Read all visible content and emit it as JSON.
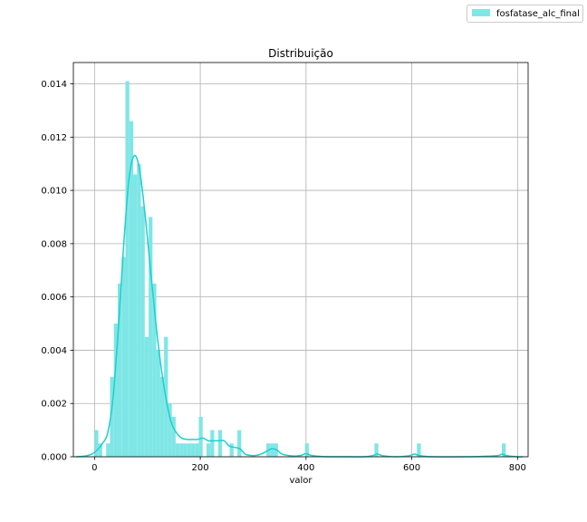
{
  "chart_data": {
    "type": "bar",
    "title": "Distribuição",
    "xlabel": "valor",
    "ylabel": "",
    "xlim": [
      -40,
      820
    ],
    "ylim": [
      0,
      0.0148
    ],
    "x_ticks": [
      "0",
      "200",
      "400",
      "600",
      "800"
    ],
    "y_ticks": [
      "0.000",
      "0.002",
      "0.004",
      "0.006",
      "0.008",
      "0.010",
      "0.012",
      "0.014"
    ],
    "grid": true,
    "legend_position": "top-right",
    "bin_width": 7.3,
    "histogram_color": "#7fe6e6",
    "kde_color": "#1ecfcf",
    "series": [
      {
        "name": "fosfatase_alc_final",
        "kind": "histogram",
        "bins": [
          {
            "x": 0,
            "y": 0.001
          },
          {
            "x": 7.3,
            "y": 0.0005
          },
          {
            "x": 22,
            "y": 0.0005
          },
          {
            "x": 29.3,
            "y": 0.003
          },
          {
            "x": 36.6,
            "y": 0.005
          },
          {
            "x": 43.9,
            "y": 0.0065
          },
          {
            "x": 51.2,
            "y": 0.0075
          },
          {
            "x": 58.5,
            "y": 0.0141
          },
          {
            "x": 65.8,
            "y": 0.0126
          },
          {
            "x": 73.1,
            "y": 0.0106
          },
          {
            "x": 80.4,
            "y": 0.011
          },
          {
            "x": 87.7,
            "y": 0.0094
          },
          {
            "x": 95,
            "y": 0.0045
          },
          {
            "x": 102.3,
            "y": 0.009
          },
          {
            "x": 109.6,
            "y": 0.0065
          },
          {
            "x": 116.9,
            "y": 0.004
          },
          {
            "x": 124.2,
            "y": 0.003
          },
          {
            "x": 131.5,
            "y": 0.0045
          },
          {
            "x": 138.8,
            "y": 0.002
          },
          {
            "x": 146.1,
            "y": 0.0015
          },
          {
            "x": 153.4,
            "y": 0.0005
          },
          {
            "x": 160.7,
            "y": 0.0005
          },
          {
            "x": 168,
            "y": 0.0005
          },
          {
            "x": 175.3,
            "y": 0.0005
          },
          {
            "x": 182.6,
            "y": 0.0005
          },
          {
            "x": 189.9,
            "y": 0.0005
          },
          {
            "x": 197.2,
            "y": 0.0015
          },
          {
            "x": 211.8,
            "y": 0.0005
          },
          {
            "x": 219.1,
            "y": 0.001
          },
          {
            "x": 233.7,
            "y": 0.001
          },
          {
            "x": 255.6,
            "y": 0.0005
          },
          {
            "x": 270.2,
            "y": 0.001
          },
          {
            "x": 325,
            "y": 0.0005
          },
          {
            "x": 332.3,
            "y": 0.0005
          },
          {
            "x": 339.6,
            "y": 0.0005
          },
          {
            "x": 398,
            "y": 0.0005
          },
          {
            "x": 529.4,
            "y": 0.0005
          },
          {
            "x": 609.7,
            "y": 0.0005
          },
          {
            "x": 770.3,
            "y": 0.0005
          }
        ]
      },
      {
        "kind": "kde",
        "x": [
          -35,
          -20,
          -5,
          5,
          15,
          25,
          35,
          45,
          55,
          65,
          75,
          85,
          95,
          105,
          115,
          125,
          135,
          145,
          155,
          165,
          175,
          185,
          195,
          205,
          215,
          225,
          235,
          245,
          255,
          265,
          275,
          285,
          295,
          305,
          315,
          325,
          335,
          345,
          355,
          375,
          390,
          400,
          410,
          430,
          470,
          510,
          525,
          535,
          545,
          570,
          595,
          605,
          615,
          640,
          700,
          760,
          770,
          780,
          800,
          810
        ],
        "y": [
          0,
          2e-05,
          0.0001,
          0.00025,
          0.0005,
          0.0009,
          0.0022,
          0.0048,
          0.0079,
          0.0104,
          0.0113,
          0.0108,
          0.0092,
          0.0072,
          0.0052,
          0.0035,
          0.0022,
          0.0013,
          0.0009,
          0.0007,
          0.00065,
          0.00065,
          0.00065,
          0.0007,
          0.0006,
          0.0006,
          0.0006,
          0.0006,
          0.0004,
          0.00035,
          0.0003,
          0.0001,
          5e-05,
          5e-05,
          0.0001,
          0.0002,
          0.0003,
          0.00025,
          0.0001,
          3e-05,
          5e-05,
          0.00012,
          5e-05,
          1e-05,
          0,
          0,
          4e-05,
          0.0001,
          4e-05,
          0,
          4e-05,
          0.0001,
          4e-05,
          0,
          0,
          4e-05,
          0.0001,
          4e-05,
          0,
          0
        ]
      }
    ]
  }
}
